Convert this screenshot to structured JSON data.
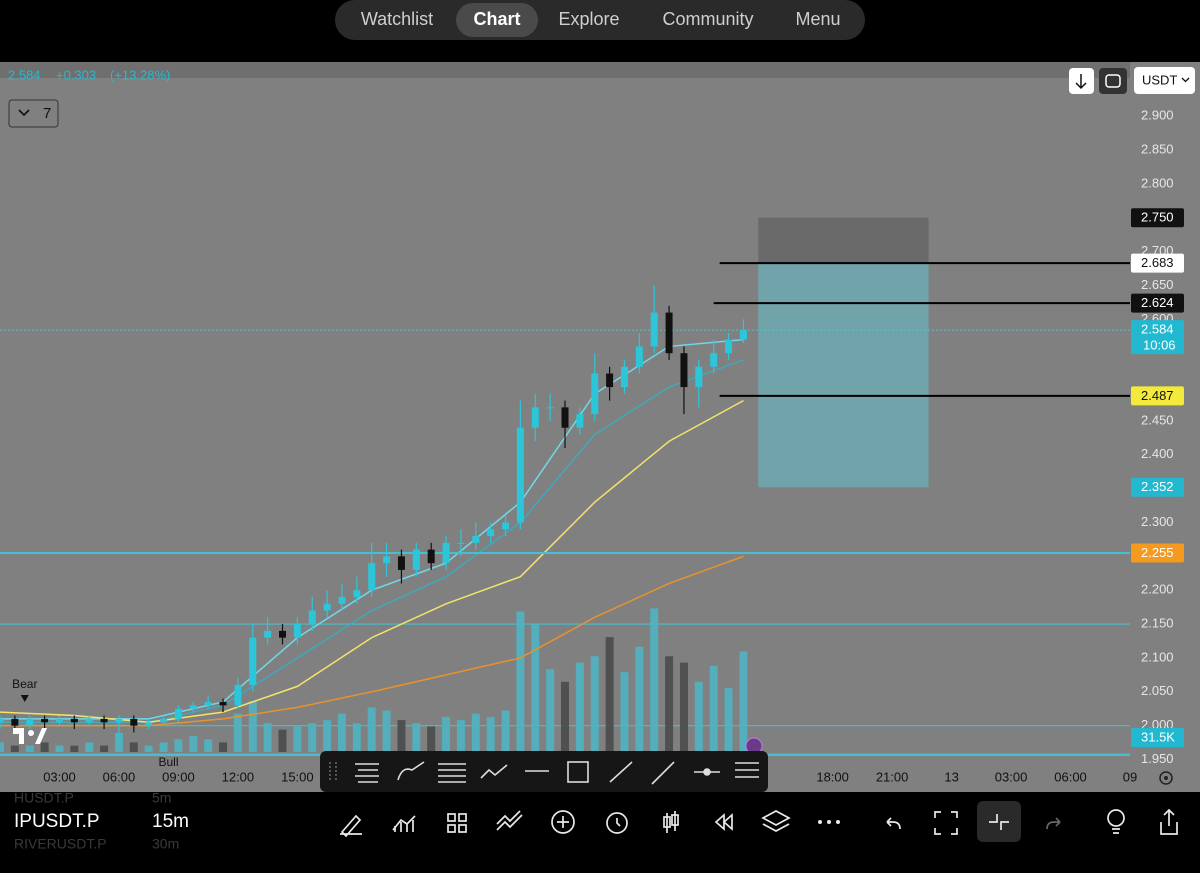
{
  "nav": {
    "tabs": [
      "Watchlist",
      "Chart",
      "Explore",
      "Community",
      "Menu"
    ],
    "active": 1
  },
  "header": {
    "last": "2.584",
    "change": "+0.303",
    "change_pct": "(+13.28%)",
    "indicators_count": "7",
    "currency": "USDT"
  },
  "chart_data": {
    "type": "candlestick",
    "xlim": [
      -3,
      54
    ],
    "ylim": [
      1.905,
      2.98
    ],
    "xticks": [
      {
        "value": 0,
        "label": "03:00"
      },
      {
        "value": 3,
        "label": "06:00"
      },
      {
        "value": 6,
        "label": "09:00"
      },
      {
        "value": 9,
        "label": "12:00"
      },
      {
        "value": 12,
        "label": "15:00"
      },
      {
        "value": 39,
        "label": "18:00"
      },
      {
        "value": 42,
        "label": "21:00"
      },
      {
        "value": 45,
        "label": "13"
      },
      {
        "value": 48,
        "label": "03:00"
      },
      {
        "value": 51,
        "label": "06:00"
      },
      {
        "value": 54,
        "label": "09"
      }
    ],
    "yticks": [
      {
        "value": 2.9,
        "label": "2.900"
      },
      {
        "value": 2.85,
        "label": "2.850"
      },
      {
        "value": 2.8,
        "label": "2.800"
      },
      {
        "value": 2.7,
        "label": "2.700"
      },
      {
        "value": 2.65,
        "label": "2.650"
      },
      {
        "value": 2.6,
        "label": "2.600"
      },
      {
        "value": 2.45,
        "label": "2.450"
      },
      {
        "value": 2.4,
        "label": "2.400"
      },
      {
        "value": 2.3,
        "label": "2.300"
      },
      {
        "value": 2.2,
        "label": "2.200"
      },
      {
        "value": 2.15,
        "label": "2.150"
      },
      {
        "value": 2.1,
        "label": "2.100"
      },
      {
        "value": 2.05,
        "label": "2.050"
      },
      {
        "value": 2.0,
        "label": "2.000"
      },
      {
        "value": 1.95,
        "label": "1.950"
      }
    ],
    "candles": {
      "x": [
        -3,
        -2.25,
        -1.5,
        -0.75,
        0,
        0.75,
        1.5,
        2.25,
        3,
        3.75,
        4.5,
        5.25,
        6,
        6.75,
        7.5,
        8.25,
        9,
        9.75,
        10.5,
        11.25,
        12,
        12.75,
        13.5,
        14.25,
        15,
        15.75,
        16.5,
        17.25,
        18,
        18.75,
        19.5,
        20.25,
        21,
        21.75,
        22.5,
        23.25,
        24,
        24.75,
        25.5,
        26.25,
        27,
        27.75,
        28.5,
        29.25,
        30,
        30.75,
        31.5,
        32.25,
        33,
        33.75,
        34.5
      ],
      "open": [
        2.005,
        2.01,
        2.0,
        2.01,
        2.005,
        2.01,
        2.005,
        2.01,
        2.005,
        2.01,
        2.0,
        2.005,
        2.01,
        2.025,
        2.03,
        2.035,
        2.03,
        2.06,
        2.13,
        2.14,
        2.13,
        2.15,
        2.17,
        2.18,
        2.19,
        2.2,
        2.24,
        2.25,
        2.23,
        2.26,
        2.24,
        2.27,
        2.27,
        2.28,
        2.29,
        2.3,
        2.44,
        2.47,
        2.47,
        2.44,
        2.46,
        2.52,
        2.5,
        2.53,
        2.56,
        2.61,
        2.55,
        2.5,
        2.53,
        2.55,
        2.57
      ],
      "high": [
        2.015,
        2.015,
        2.015,
        2.015,
        2.015,
        2.015,
        2.015,
        2.015,
        2.015,
        2.015,
        2.01,
        2.015,
        2.03,
        2.035,
        2.045,
        2.04,
        2.07,
        2.15,
        2.16,
        2.15,
        2.16,
        2.19,
        2.2,
        2.21,
        2.22,
        2.27,
        2.27,
        2.26,
        2.27,
        2.27,
        2.28,
        2.29,
        2.3,
        2.3,
        2.31,
        2.48,
        2.49,
        2.49,
        2.48,
        2.47,
        2.55,
        2.53,
        2.54,
        2.58,
        2.65,
        2.62,
        2.56,
        2.54,
        2.57,
        2.58,
        2.6
      ],
      "low": [
        1.995,
        1.99,
        1.995,
        1.995,
        2.0,
        1.995,
        2.0,
        1.995,
        1.97,
        1.99,
        1.995,
        2.0,
        2.005,
        2.02,
        2.025,
        2.02,
        2.025,
        2.05,
        2.12,
        2.12,
        2.12,
        2.14,
        2.16,
        2.17,
        2.18,
        2.19,
        2.22,
        2.21,
        2.22,
        2.23,
        2.23,
        2.25,
        2.26,
        2.27,
        2.28,
        2.29,
        2.42,
        2.45,
        2.41,
        2.43,
        2.45,
        2.48,
        2.49,
        2.52,
        2.55,
        2.54,
        2.46,
        2.47,
        2.52,
        2.54,
        2.565
      ],
      "close": [
        2.01,
        2.0,
        2.01,
        2.005,
        2.01,
        2.005,
        2.01,
        2.005,
        2.01,
        2.0,
        2.005,
        2.01,
        2.025,
        2.03,
        2.035,
        2.03,
        2.06,
        2.13,
        2.14,
        2.13,
        2.15,
        2.17,
        2.18,
        2.19,
        2.2,
        2.24,
        2.25,
        2.23,
        2.26,
        2.24,
        2.27,
        2.27,
        2.28,
        2.29,
        2.3,
        2.44,
        2.47,
        2.47,
        2.44,
        2.46,
        2.52,
        2.5,
        2.53,
        2.56,
        2.61,
        2.55,
        2.5,
        2.53,
        2.55,
        2.57,
        2.584
      ],
      "up_color": "#2cc6da",
      "down_color": "#111111"
    },
    "volume": {
      "values": [
        3,
        2,
        2,
        3,
        2,
        2,
        3,
        2,
        6,
        3,
        2,
        3,
        4,
        5,
        4,
        3,
        12,
        16,
        9,
        7,
        8,
        9,
        10,
        12,
        9,
        14,
        13,
        10,
        9,
        8,
        11,
        10,
        12,
        11,
        13,
        44,
        40,
        26,
        22,
        28,
        30,
        36,
        25,
        33,
        45,
        30,
        28,
        22,
        27,
        20,
        31.5
      ],
      "last_label": "31.5K",
      "vlim": [
        0,
        47
      ],
      "up_color": "#4fb3c2",
      "down_color": "#4a4a4a"
    },
    "ma_x": [
      -3,
      0.75,
      4.5,
      8.25,
      12,
      15.75,
      19.5,
      23.25,
      27,
      30.75,
      34.5
    ],
    "series": [
      {
        "color": "#6fd8ea",
        "values": [
          2.01,
          2.01,
          2.01,
          2.035,
          2.13,
          2.2,
          2.24,
          2.33,
          2.49,
          2.56,
          2.57
        ]
      },
      {
        "color": "#3fa9bb",
        "values": [
          2.005,
          2.005,
          2.005,
          2.03,
          2.1,
          2.17,
          2.22,
          2.3,
          2.43,
          2.5,
          2.54
        ]
      },
      {
        "color": "#f2e36a",
        "values": [
          2.02,
          2.015,
          2.005,
          2.02,
          2.058,
          2.13,
          2.18,
          2.22,
          2.33,
          2.42,
          2.48
        ]
      },
      {
        "color": "#e8922c",
        "values": [
          2.0,
          2.0,
          2.0,
          2.01,
          2.027,
          2.05,
          2.075,
          2.1,
          2.16,
          2.21,
          2.25
        ]
      }
    ],
    "levels": [
      {
        "value": 2.75,
        "label": "2.750",
        "bg": "#111111",
        "fg": "#ffffff"
      },
      {
        "value": 2.683,
        "label": "2.683",
        "bg": "#ffffff",
        "fg": "#111111",
        "line": "#000000",
        "from": 33.3
      },
      {
        "value": 2.624,
        "label": "2.624",
        "bg": "#111111",
        "fg": "#ffffff",
        "line": "#000000",
        "from": 33
      },
      {
        "value": 2.584,
        "label": "2.584",
        "countdown": "10:06",
        "bg": "#22b8d0",
        "fg": "#ffffff",
        "line": "#4cc4d6",
        "dash": true,
        "from": -3
      },
      {
        "value": 2.487,
        "label": "2.487",
        "bg": "#f3ea3c",
        "fg": "#111111",
        "line": "#000000",
        "from": 33.3
      },
      {
        "value": 2.352,
        "label": "2.352",
        "bg": "#22b8d0",
        "fg": "#ffffff"
      },
      {
        "value": 2.255,
        "label": "2.255",
        "bg": "#f59a1e",
        "fg": "#ffffff",
        "line": "#45bfd1",
        "from": -3
      }
    ],
    "hlines": [
      2.15,
      2.0,
      1.957
    ],
    "position": {
      "x": [
        35.25,
        43.84
      ],
      "top": 2.75,
      "entry": 2.683,
      "bottom": 2.352
    },
    "markers": [
      {
        "label": "Bear",
        "x": -1.75,
        "y": 2.06
      },
      {
        "label": "Bull",
        "x": 5.5,
        "y": 1.945
      }
    ]
  },
  "footer": {
    "symbols": [
      {
        "name": "HUSDT.P",
        "interval": "5m"
      },
      {
        "name": "IPUSDT.P",
        "interval": "15m"
      },
      {
        "name": "RIVERUSDT.P",
        "interval": "30m"
      }
    ]
  }
}
